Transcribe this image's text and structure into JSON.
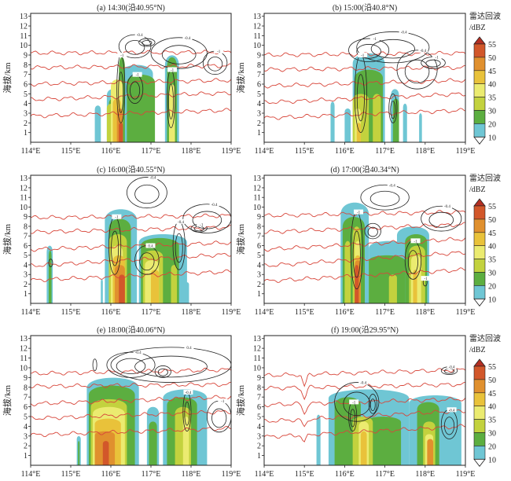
{
  "chart_data": {
    "type": "heatmap",
    "xlabel": "",
    "ylabel": "海拔/km",
    "xlim": [
      114,
      119
    ],
    "ylim": [
      0,
      13.3
    ],
    "x_ticks": [
      "114°E",
      "115°E",
      "116°E",
      "117°E",
      "118°E",
      "119°E"
    ],
    "x_tick_values": [
      114,
      115,
      116,
      117,
      118,
      119
    ],
    "y_ticks": [
      "1",
      "2",
      "3",
      "4",
      "5",
      "6",
      "7",
      "8",
      "9",
      "10",
      "11",
      "12",
      "13"
    ],
    "colorbar": {
      "title": "雷达回波",
      "unit": "/dBZ",
      "levels": [
        10,
        20,
        30,
        35,
        40,
        45,
        50,
        55
      ],
      "colors": {
        "10": "#6fc6d4",
        "20": "#5cae40",
        "30": "#c3d23e",
        "35": "#ebeb70",
        "40": "#e9c23a",
        "45": "#e0902e",
        "50": "#d2572a",
        "55": "#b52f22"
      }
    },
    "panels": [
      {
        "title": "(a) 14:30(沿40.95°N)",
        "red_lines": [
          [
            2.7,
            3.3
          ],
          [
            4.4,
            5.1
          ],
          [
            6.0,
            6.4
          ],
          [
            7.7,
            7.9
          ],
          [
            9.2,
            9.3
          ]
        ],
        "cells": [
          [
            115.6,
            115.75,
            3.8,
            10
          ],
          [
            115.9,
            116.2,
            5.5,
            10
          ],
          [
            116.25,
            117.05,
            8.0,
            10
          ],
          [
            117.35,
            117.7,
            9.0,
            10
          ],
          [
            116.4,
            117.1,
            7.0,
            20
          ],
          [
            116.2,
            116.35,
            8.8,
            20
          ],
          [
            117.4,
            117.65,
            8.8,
            20
          ],
          [
            115.95,
            116.15,
            4.5,
            20
          ],
          [
            115.9,
            116.15,
            4.0,
            30
          ],
          [
            116.0,
            116.3,
            6.5,
            35
          ],
          [
            117.45,
            117.6,
            6.0,
            35
          ],
          [
            116.05,
            116.25,
            4.5,
            40
          ],
          [
            116.15,
            116.3,
            3.5,
            45
          ],
          [
            116.2,
            116.3,
            2.0,
            50
          ]
        ],
        "contours": [
          [
            116.6,
            9.9,
            0.4,
            1.2,
            "-0.4"
          ],
          [
            117.7,
            9.2,
            0.7,
            1.6,
            "-0.4"
          ],
          [
            118.6,
            8.2,
            0.3,
            1.2,
            "-1"
          ],
          [
            116.6,
            5.5,
            0.2,
            1.5,
            "-1"
          ],
          [
            117.5,
            4.5,
            0.1,
            3.0,
            "-1"
          ],
          [
            116.25,
            5.5,
            0.1,
            3.5,
            "-1"
          ],
          [
            116.9,
            10.3,
            0.2,
            0.4,
            ""
          ]
        ]
      },
      {
        "title": "(b) 15:00(沿40.8°N)",
        "red_lines": [
          [
            2.5,
            3.3
          ],
          [
            4.1,
            5.0
          ],
          [
            5.8,
            6.4
          ],
          [
            7.5,
            7.7
          ],
          [
            9.0,
            9.2
          ]
        ],
        "cells": [
          [
            115.65,
            115.75,
            4.2,
            10
          ],
          [
            116.0,
            116.15,
            3.5,
            10
          ],
          [
            116.2,
            117.0,
            9.2,
            10
          ],
          [
            117.15,
            117.35,
            5.5,
            10
          ],
          [
            117.45,
            117.55,
            4.0,
            10
          ],
          [
            117.85,
            117.92,
            3.0,
            10
          ],
          [
            116.25,
            116.95,
            7.5,
            20
          ],
          [
            117.2,
            117.35,
            4.5,
            20
          ],
          [
            116.2,
            116.6,
            5.0,
            30
          ],
          [
            116.7,
            116.9,
            5.0,
            30
          ],
          [
            116.25,
            116.4,
            3.5,
            35
          ],
          [
            116.3,
            116.4,
            2.0,
            40
          ]
        ],
        "contours": [
          [
            117.2,
            9.8,
            0.9,
            1.6,
            "-0.4"
          ],
          [
            116.6,
            9.5,
            0.5,
            1.2,
            "-1"
          ],
          [
            117.8,
            7.5,
            0.5,
            2.0,
            "-0.4"
          ],
          [
            118.2,
            8.2,
            0.3,
            0.6,
            "-1"
          ],
          [
            116.4,
            5.0,
            0.15,
            4.0,
            "-1"
          ],
          [
            117.2,
            3.5,
            0.1,
            1.5,
            ""
          ]
        ]
      },
      {
        "title": "(c) 16:00(沿40.55°N)",
        "red_lines": [
          [
            2.4,
            3.3
          ],
          [
            3.9,
            5.1
          ],
          [
            5.6,
            6.3
          ],
          [
            7.4,
            7.9
          ],
          [
            8.9,
            9.1
          ]
        ],
        "cells": [
          [
            114.4,
            114.55,
            6.0,
            10
          ],
          [
            115.75,
            115.8,
            2.5,
            10
          ],
          [
            115.85,
            116.65,
            9.8,
            10
          ],
          [
            116.7,
            117.9,
            7.2,
            10
          ],
          [
            117.85,
            117.95,
            2.2,
            10
          ],
          [
            114.45,
            114.52,
            5.5,
            20
          ],
          [
            115.95,
            116.5,
            8.8,
            20
          ],
          [
            116.75,
            117.7,
            6.8,
            20
          ],
          [
            115.95,
            116.4,
            7.2,
            30
          ],
          [
            116.8,
            117.3,
            5.5,
            30
          ],
          [
            117.5,
            117.65,
            4.0,
            30
          ],
          [
            116.0,
            116.3,
            6.0,
            35
          ],
          [
            116.85,
            117.2,
            4.5,
            35
          ],
          [
            116.05,
            116.35,
            5.0,
            40
          ],
          [
            117.0,
            117.2,
            3.5,
            40
          ],
          [
            116.1,
            116.35,
            4.0,
            45
          ],
          [
            116.2,
            116.35,
            3.0,
            50
          ]
        ],
        "contours": [
          [
            116.9,
            11.5,
            0.5,
            1.6,
            "-0.4"
          ],
          [
            118.4,
            8.8,
            0.6,
            1.5,
            "-0.4"
          ],
          [
            118.2,
            7.8,
            0.2,
            0.4,
            "-1"
          ],
          [
            116.1,
            6.0,
            0.15,
            3.0,
            "-1"
          ],
          [
            116.9,
            4.5,
            0.3,
            1.5,
            "0.4"
          ],
          [
            117.7,
            6.0,
            0.15,
            2.5,
            "-0.4"
          ],
          [
            114.5,
            4.2,
            0.05,
            0.4,
            ""
          ]
        ]
      },
      {
        "title": "(d) 17:00(沿40.34°N)",
        "red_lines": [
          [
            2.3,
            3.5
          ],
          [
            3.9,
            5.3
          ],
          [
            5.6,
            6.7
          ],
          [
            7.4,
            8.2
          ],
          [
            9.1,
            9.5
          ]
        ],
        "cells": [
          [
            115.9,
            116.6,
            10.5,
            10
          ],
          [
            116.6,
            117.6,
            6.5,
            10
          ],
          [
            117.3,
            118.1,
            8.0,
            10
          ],
          [
            115.95,
            116.5,
            9.0,
            20
          ],
          [
            116.6,
            117.5,
            5.0,
            20
          ],
          [
            117.5,
            118.05,
            7.2,
            20
          ],
          [
            116.0,
            116.15,
            6.5,
            30
          ],
          [
            116.2,
            116.4,
            8.0,
            30
          ],
          [
            117.1,
            117.3,
            3.0,
            30
          ],
          [
            117.6,
            118.0,
            6.0,
            30
          ],
          [
            116.25,
            116.4,
            6.5,
            35
          ],
          [
            117.65,
            117.9,
            5.0,
            35
          ],
          [
            116.25,
            116.4,
            5.0,
            40
          ],
          [
            117.7,
            117.8,
            3.5,
            40
          ],
          [
            116.25,
            116.4,
            4.5,
            45
          ],
          [
            116.25,
            116.35,
            4.0,
            50
          ]
        ],
        "contours": [
          [
            117.0,
            11.0,
            0.6,
            1.3,
            "-0.4"
          ],
          [
            118.4,
            8.8,
            0.5,
            1.3,
            "-0.4"
          ],
          [
            116.3,
            5.5,
            0.15,
            4.0,
            "-1"
          ],
          [
            117.7,
            4.5,
            0.2,
            2.0,
            "-1"
          ],
          [
            116.7,
            7.5,
            0.2,
            0.8,
            ""
          ],
          [
            118.0,
            2.2,
            0.05,
            0.4,
            "-1"
          ]
        ]
      },
      {
        "title": "(e) 18:00(沿40.06°N)",
        "red_lines": [
          [
            3.1,
            3.8
          ],
          [
            4.8,
            5.5
          ],
          [
            6.3,
            7.0
          ],
          [
            8.1,
            8.3
          ],
          [
            9.4,
            9.8
          ]
        ],
        "cells": [
          [
            115.15,
            115.25,
            3.0,
            10
          ],
          [
            115.4,
            116.7,
            9.0,
            10
          ],
          [
            116.9,
            117.2,
            6.0,
            10
          ],
          [
            117.3,
            118.4,
            7.8,
            10
          ],
          [
            115.18,
            115.22,
            2.5,
            20
          ],
          [
            115.45,
            116.6,
            8.2,
            20
          ],
          [
            116.95,
            117.15,
            4.5,
            20
          ],
          [
            117.4,
            118.15,
            7.0,
            20
          ],
          [
            115.5,
            116.4,
            6.8,
            30
          ],
          [
            117.6,
            118.0,
            6.0,
            30
          ],
          [
            115.55,
            116.35,
            6.0,
            35
          ],
          [
            117.8,
            117.95,
            5.0,
            35
          ],
          [
            115.6,
            116.25,
            4.8,
            40
          ],
          [
            115.6,
            116.1,
            3.5,
            45
          ],
          [
            115.8,
            115.95,
            2.5,
            50
          ]
        ],
        "contours": [
          [
            116.5,
            10.3,
            0.6,
            1.3,
            "-0.4"
          ],
          [
            117.5,
            10.3,
            1.5,
            1.8,
            "0.4"
          ],
          [
            118.7,
            5.0,
            0.3,
            1.6,
            "-1"
          ],
          [
            117.3,
            9.6,
            0.2,
            0.6,
            ""
          ],
          [
            115.6,
            10.3,
            0.05,
            0.6,
            ""
          ],
          [
            117.9,
            5.5,
            0.1,
            2.0,
            "-0.4"
          ]
        ]
      },
      {
        "title": "(f) 19:00(沿29.95°N)",
        "red_lines": [
          [
            2.9,
            4.0
          ],
          [
            4.5,
            5.6
          ],
          [
            6.2,
            6.8
          ],
          [
            7.9,
            8.3
          ],
          [
            9.2,
            9.8
          ]
        ],
        "dip": [
          115.0,
          1.3
        ],
        "cells": [
          [
            115.3,
            115.4,
            5.2,
            10
          ],
          [
            115.6,
            117.6,
            7.8,
            10
          ],
          [
            117.6,
            118.9,
            7.2,
            10
          ],
          [
            115.75,
            116.4,
            7.0,
            20
          ],
          [
            116.5,
            117.4,
            5.0,
            20
          ],
          [
            117.8,
            118.35,
            6.5,
            20
          ],
          [
            116.2,
            116.7,
            5.0,
            30
          ],
          [
            117.95,
            118.25,
            4.5,
            30
          ],
          [
            116.35,
            116.6,
            4.5,
            35
          ],
          [
            118.0,
            118.2,
            3.2,
            35
          ],
          [
            116.4,
            116.55,
            3.5,
            40
          ],
          [
            118.05,
            118.2,
            2.7,
            45
          ]
        ],
        "contours": [
          [
            116.3,
            6.5,
            0.55,
            2.0,
            "-0.4"
          ],
          [
            118.6,
            9.7,
            0.2,
            0.4,
            "-0.4"
          ],
          [
            118.6,
            4.2,
            0.2,
            1.5,
            "-0.4"
          ],
          [
            116.2,
            5.0,
            0.1,
            1.5,
            "-1"
          ],
          [
            116.7,
            6.3,
            0.1,
            1.0,
            ""
          ]
        ]
      }
    ]
  }
}
